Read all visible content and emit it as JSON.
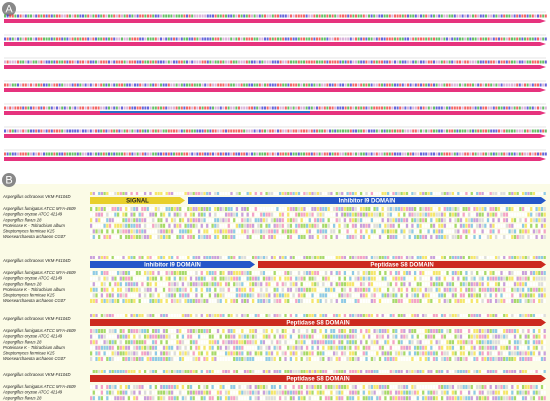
{
  "panel_a": {
    "label": "A"
  },
  "panel_b": {
    "label": "B",
    "reference": "Aspergillus ochraceus VKM-F4104D",
    "species": [
      "Aspergillus fumigatus ATCC MYA-4609",
      "Aspergillus oryzae ATCC 42149",
      "Aspergillus flavus 28",
      "Proteinase K - Tritirachium album",
      "Streptomyces fermicae K15",
      "Woesearchaeota archaeon CG07"
    ],
    "blocks": [
      {
        "domains": [
          "SIGNAL",
          "Inhibitor I9 DOMAIN"
        ]
      },
      {
        "domains": [
          "Inhibitor I9 DOMAIN",
          "Peptidase S8 DOMAIN"
        ]
      },
      {
        "domains": [
          "Peptidase S8 DOMAIN"
        ]
      },
      {
        "domains": [
          "Peptidase S8 DOMAIN"
        ]
      }
    ]
  }
}
